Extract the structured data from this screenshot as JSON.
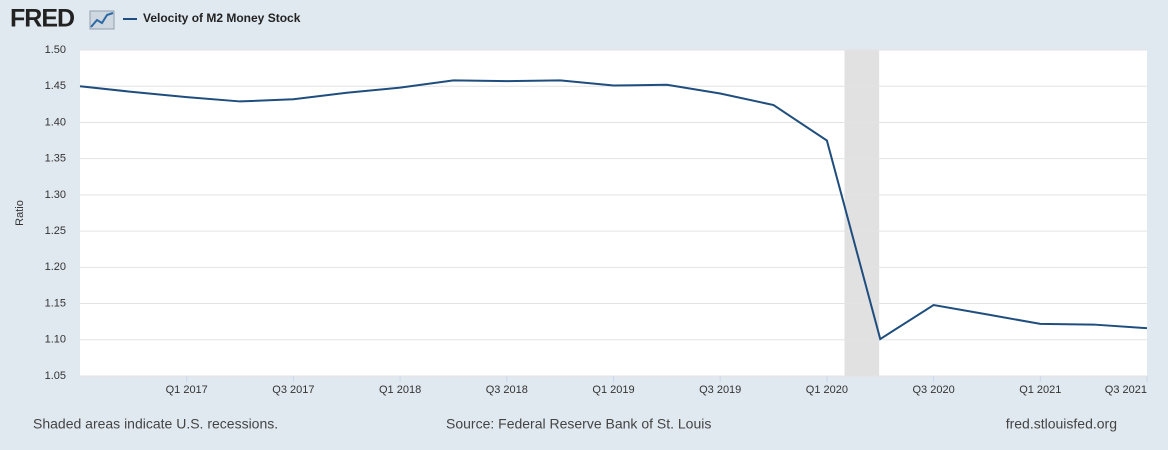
{
  "logo": "FRED",
  "chart_data": {
    "type": "line",
    "series": [
      {
        "name": "Velocity of M2 Money Stock",
        "color": "#1f4e7e",
        "values": [
          1.45,
          1.442,
          1.435,
          1.429,
          1.432,
          1.441,
          1.448,
          1.458,
          1.457,
          1.458,
          1.451,
          1.452,
          1.44,
          1.424,
          1.375,
          1.101,
          1.148,
          1.135,
          1.122,
          1.121,
          1.116
        ]
      }
    ],
    "categories": [
      null,
      null,
      "Q1 2017",
      null,
      "Q3 2017",
      null,
      "Q1 2018",
      null,
      "Q3 2018",
      null,
      "Q1 2019",
      null,
      "Q3 2019",
      null,
      "Q1 2020",
      null,
      "Q3 2020",
      null,
      "Q1 2021",
      null,
      "Q3 2021"
    ],
    "ylabel": "Ratio",
    "ylim": [
      1.05,
      1.5
    ],
    "yticks": [
      {
        "value": 1.05,
        "label": "1.05"
      },
      {
        "value": 1.1,
        "label": "1.10"
      },
      {
        "value": 1.15,
        "label": "1.15"
      },
      {
        "value": 1.2,
        "label": "1.20"
      },
      {
        "value": 1.25,
        "label": "1.25"
      },
      {
        "value": 1.3,
        "label": "1.30"
      },
      {
        "value": 1.35,
        "label": "1.35"
      },
      {
        "value": 1.4,
        "label": "1.40"
      },
      {
        "value": 1.45,
        "label": "1.45"
      },
      {
        "value": 1.5,
        "label": "1.50"
      }
    ],
    "recessions": [
      [
        14.33,
        14.98
      ]
    ],
    "grid": true,
    "notes": [
      "Shaded areas indicate U.S. recessions.",
      "Source: Federal Reserve Bank of St. Louis",
      "fred.stlouisfed.org"
    ]
  }
}
